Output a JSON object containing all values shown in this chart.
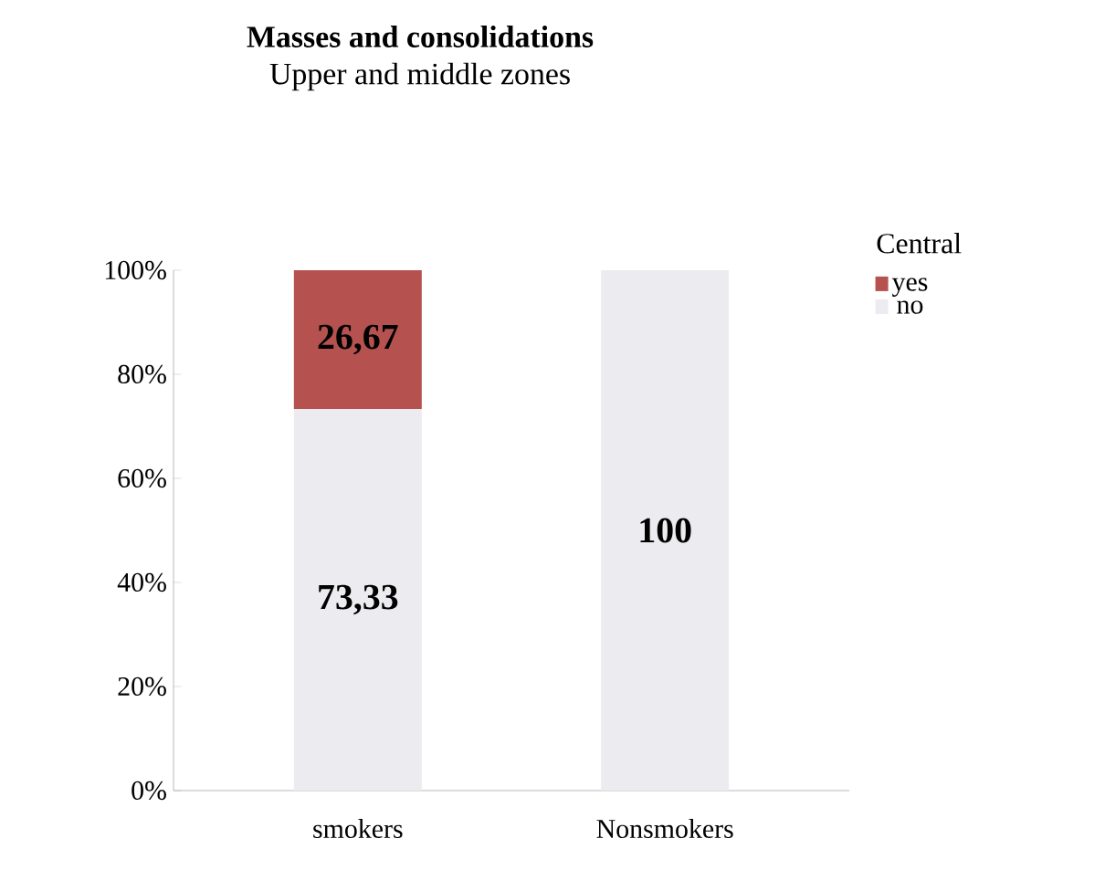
{
  "chart_data": {
    "type": "bar",
    "title": "Masses and consolidations",
    "subtitle": "Upper and middle zones",
    "legend_title": "Central",
    "stacked": true,
    "legend": "top right",
    "categories": [
      "smokers",
      "Nonsmokers"
    ],
    "series": [
      {
        "name": "no",
        "color": "#ececf0",
        "values": [
          73.33,
          100
        ],
        "value_labels": [
          "73,33",
          "100"
        ]
      },
      {
        "name": "yes",
        "color": "#b5524f",
        "values": [
          26.67,
          0
        ],
        "value_labels": [
          "26,67",
          null
        ]
      }
    ],
    "ylim": [
      0,
      100
    ],
    "yticks": [
      {
        "value": 0,
        "label": "0%"
      },
      {
        "value": 20,
        "label": "20%"
      },
      {
        "value": 40,
        "label": "40%"
      },
      {
        "value": 60,
        "label": "60%"
      },
      {
        "value": 80,
        "label": "80%"
      },
      {
        "value": 100,
        "label": "100%"
      }
    ]
  }
}
